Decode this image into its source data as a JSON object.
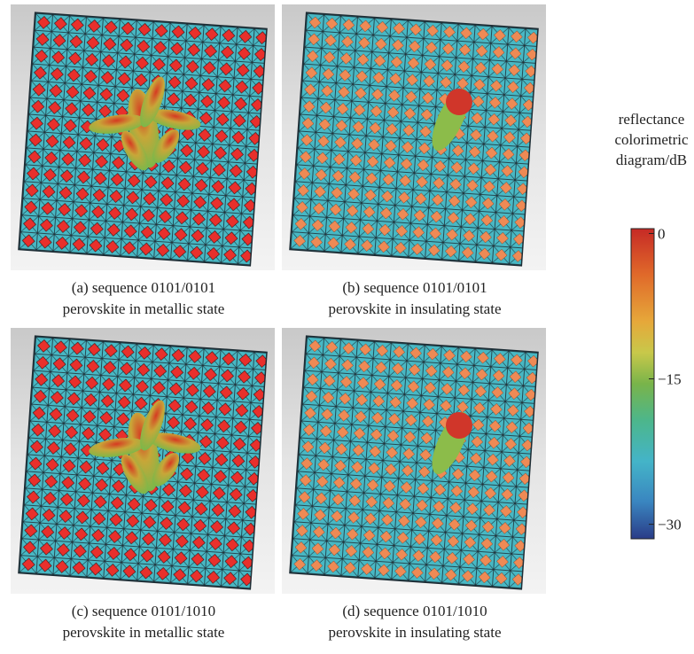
{
  "panels": [
    {
      "caption": [
        "(a) sequence 0101/0101",
        "perovskite in metallic state"
      ]
    },
    {
      "caption": [
        "(b) sequence 0101/0101",
        "perovskite in insulating state"
      ]
    },
    {
      "caption": [
        "(c) sequence 0101/1010",
        "perovskite in metallic state"
      ]
    },
    {
      "caption": [
        "(d) sequence 0101/1010",
        "perovskite in insulating state"
      ]
    }
  ],
  "colorbar": {
    "title": [
      "reflectance",
      "colorimetric",
      "diagram/dB"
    ],
    "lim": [
      -31.5,
      0.5
    ],
    "ticks": [
      0,
      {
        "value": -15,
        "label": "−15"
      },
      {
        "value": -30,
        "label": "−30"
      }
    ]
  }
}
